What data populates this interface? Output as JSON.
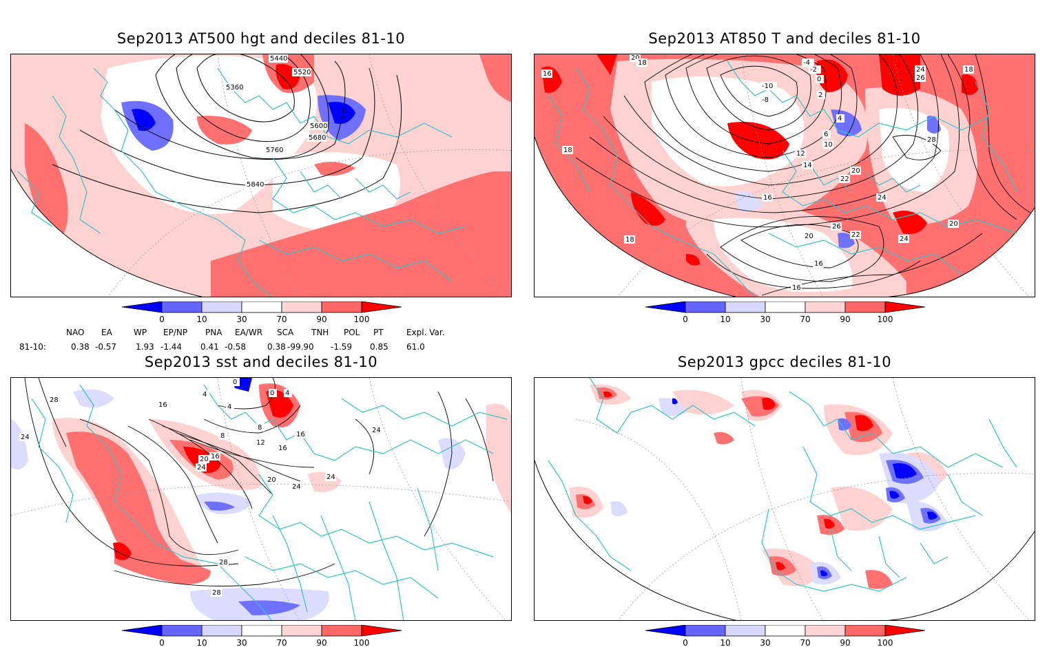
{
  "panels": [
    {
      "id": "p1",
      "title": "Sep2013 AT500 hgt and deciles 81-10",
      "contour_labels": [
        "5440",
        "5520",
        "5360",
        "5600",
        "5680",
        "5760",
        "5840"
      ]
    },
    {
      "id": "p2",
      "title": "Sep2013 AT850 T and deciles 81-10",
      "contour_labels": [
        "20",
        "18",
        "16",
        "-4",
        "-2",
        "-10",
        "-8",
        "0",
        "2",
        "24",
        "26",
        "18",
        "4",
        "6",
        "10",
        "28",
        "12",
        "14",
        "20",
        "22",
        "18",
        "24",
        "16",
        "26",
        "22",
        "20",
        "24",
        "20",
        "16",
        "18",
        "16"
      ]
    },
    {
      "id": "p3",
      "title": "Sep2013 sst and deciles 81-10",
      "contour_labels": [
        "28",
        "24",
        "16",
        "0",
        "4",
        "4",
        "0",
        "4",
        "8",
        "8",
        "12",
        "16",
        "16",
        "20",
        "16",
        "24",
        "20",
        "24",
        "24",
        "28",
        "28",
        "24"
      ]
    },
    {
      "id": "p4",
      "title": "Sep2013 gpcc deciles 81-10",
      "contour_labels": []
    }
  ],
  "colorbar": {
    "labels": [
      "0",
      "10",
      "30",
      "70",
      "90",
      "100"
    ],
    "colors": [
      "#0000ff",
      "#6666ff",
      "#d8d8ff",
      "#ffffff",
      "#ffd4d4",
      "#ff6666",
      "#ff0000"
    ]
  },
  "indices": {
    "row_label": "81-10:",
    "names": [
      "NAO",
      "EA",
      "WP",
      "EP/NP",
      "PNA",
      "EA/WR",
      "SCA",
      "TNH",
      "POL",
      "PT",
      "Expl. Var."
    ],
    "values": [
      "0.38",
      "-0.57",
      "1.93",
      "-1.44",
      "0.41",
      "-0.58",
      "0.38",
      "-99.90",
      "-1.59",
      "0.85",
      "61.0"
    ]
  },
  "colors": {
    "land_outline": "#2ec4c4",
    "light_red": "#ffd2d2",
    "mid_red": "#ff7070",
    "red": "#ff0000",
    "light_blue": "#dcdcff",
    "mid_blue": "#7070ff",
    "blue": "#0000ff"
  }
}
